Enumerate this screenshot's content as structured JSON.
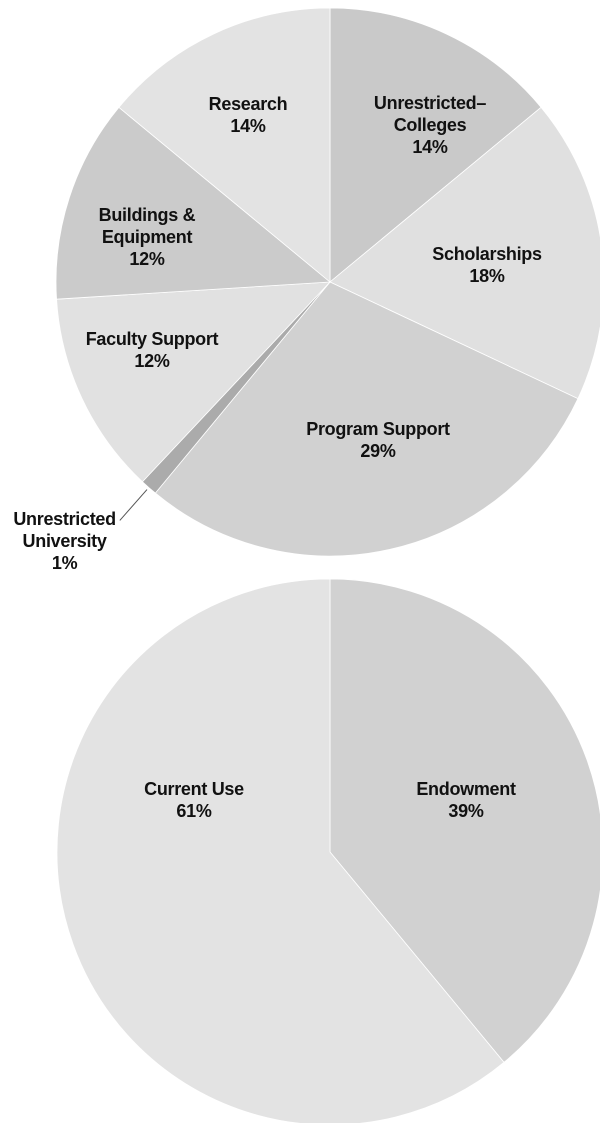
{
  "chart_data": [
    {
      "type": "pie",
      "categories": [
        "Unrestricted–\nColleges",
        "Scholarships",
        "Program Support",
        "Unrestricted\nUniversity",
        "Faculty Support",
        "Buildings &\nEquipment",
        "Research"
      ],
      "values": [
        14,
        18,
        29,
        1,
        12,
        12,
        14
      ],
      "value_labels": [
        "14%",
        "18%",
        "29%",
        "1%",
        "12%",
        "12%",
        "14%"
      ],
      "colors": [
        "#c9c9c9",
        "#e0e0e0",
        "#d1d1d1",
        "#ababab",
        "#e1e1e1",
        "#cbcbcb",
        "#e3e3e3"
      ]
    },
    {
      "type": "pie",
      "categories": [
        "Endowment",
        "Current Use"
      ],
      "values": [
        39,
        61
      ],
      "value_labels": [
        "39%",
        "61%"
      ],
      "colors": [
        "#d1d1d1",
        "#e3e3e3"
      ]
    }
  ]
}
